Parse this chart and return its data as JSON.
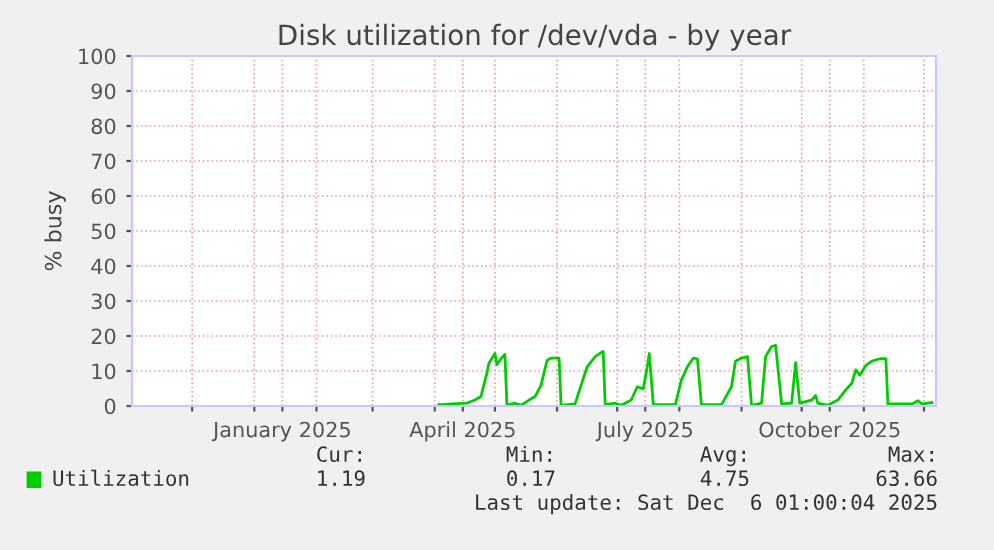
{
  "chart_data": {
    "type": "line",
    "title": "Disk utilization for /dev/vda - by year",
    "ylabel": "% busy",
    "x": [
      "2025-04-03",
      "2025-04-17",
      "2025-04-21",
      "2025-04-24",
      "2025-04-27",
      "2025-04-28",
      "2025-05-01",
      "2025-05-02",
      "2025-05-04",
      "2025-05-06",
      "2025-05-07",
      "2025-05-11",
      "2025-05-14",
      "2025-05-18",
      "2025-05-21",
      "2025-05-24",
      "2025-05-27",
      "2025-05-29",
      "2025-06-02",
      "2025-06-03",
      "2025-06-10",
      "2025-06-16",
      "2025-06-20",
      "2025-06-24",
      "2025-06-25",
      "2025-06-30",
      "2025-07-03",
      "2025-07-08",
      "2025-07-11",
      "2025-07-14",
      "2025-07-16",
      "2025-07-17",
      "2025-07-19",
      "2025-07-30",
      "2025-08-02",
      "2025-08-05",
      "2025-08-08",
      "2025-08-10",
      "2025-08-12",
      "2025-08-22",
      "2025-08-27",
      "2025-08-29",
      "2025-09-01",
      "2025-09-04",
      "2025-09-06",
      "2025-09-11",
      "2025-09-13",
      "2025-09-16",
      "2025-09-18",
      "2025-09-21",
      "2025-09-26",
      "2025-09-28",
      "2025-09-30",
      "2025-10-06",
      "2025-10-08",
      "2025-10-09",
      "2025-10-14",
      "2025-10-19",
      "2025-10-23",
      "2025-10-26",
      "2025-10-28",
      "2025-10-30",
      "2025-11-02",
      "2025-11-05",
      "2025-11-09",
      "2025-11-12",
      "2025-11-13",
      "2025-11-20",
      "2025-11-25",
      "2025-11-28",
      "2025-11-30",
      "2025-12-05"
    ],
    "series": [
      {
        "name": "Utilization",
        "color": "#00cc00",
        "values": [
          0.4,
          0.8,
          1.7,
          2.7,
          9.3,
          12.2,
          15.0,
          11.8,
          13.5,
          14.7,
          0.2,
          0.8,
          0.2,
          1.7,
          2.7,
          5.9,
          13.0,
          13.7,
          13.7,
          0.2,
          0.6,
          11.2,
          14.1,
          15.6,
          0.4,
          0.8,
          0.2,
          1.7,
          5.5,
          4.9,
          11.2,
          15.0,
          0.4,
          0.4,
          7.4,
          11.2,
          13.7,
          13.5,
          0.4,
          0.4,
          5.5,
          12.8,
          13.7,
          14.1,
          0.2,
          0.8,
          14.1,
          17.0,
          17.3,
          0.6,
          0.8,
          12.4,
          0.8,
          1.7,
          3.0,
          0.8,
          0.2,
          1.7,
          4.6,
          6.5,
          10.3,
          8.8,
          11.6,
          12.8,
          13.5,
          13.5,
          0.6,
          0.6,
          0.6,
          1.5,
          0.6,
          1.0
        ]
      }
    ],
    "xlim": [
      "2024-11-01",
      "2025-12-07"
    ],
    "xticks": [
      {
        "value": "2024-12-01",
        "label": null
      },
      {
        "value": "2025-01-01",
        "label": null
      },
      {
        "value": "2025-01-15",
        "label": "January 2025"
      },
      {
        "value": "2025-02-01",
        "label": null
      },
      {
        "value": "2025-03-01",
        "label": null
      },
      {
        "value": "2025-04-01",
        "label": null
      },
      {
        "value": "2025-04-15",
        "label": "April 2025"
      },
      {
        "value": "2025-05-01",
        "label": null
      },
      {
        "value": "2025-06-01",
        "label": null
      },
      {
        "value": "2025-07-01",
        "label": null
      },
      {
        "value": "2025-07-15",
        "label": "July 2025"
      },
      {
        "value": "2025-08-01",
        "label": null
      },
      {
        "value": "2025-09-01",
        "label": null
      },
      {
        "value": "2025-10-01",
        "label": null
      },
      {
        "value": "2025-10-15",
        "label": "October 2025"
      },
      {
        "value": "2025-11-01",
        "label": null
      },
      {
        "value": "2025-12-01",
        "label": null
      }
    ],
    "ylim": [
      0,
      100
    ],
    "yticks": [
      0,
      10,
      20,
      30,
      40,
      50,
      60,
      70,
      80,
      90,
      100
    ],
    "grid": true,
    "legend": "bottom left",
    "marker": "none",
    "line_style": "solid",
    "annotations": [
      "Cur:",
      "Min:",
      "Avg:",
      "Max:",
      "1.19",
      "0.17",
      "4.75",
      "63.66",
      "Last update: Sat Dec  6 01:00:04 2025"
    ]
  }
}
